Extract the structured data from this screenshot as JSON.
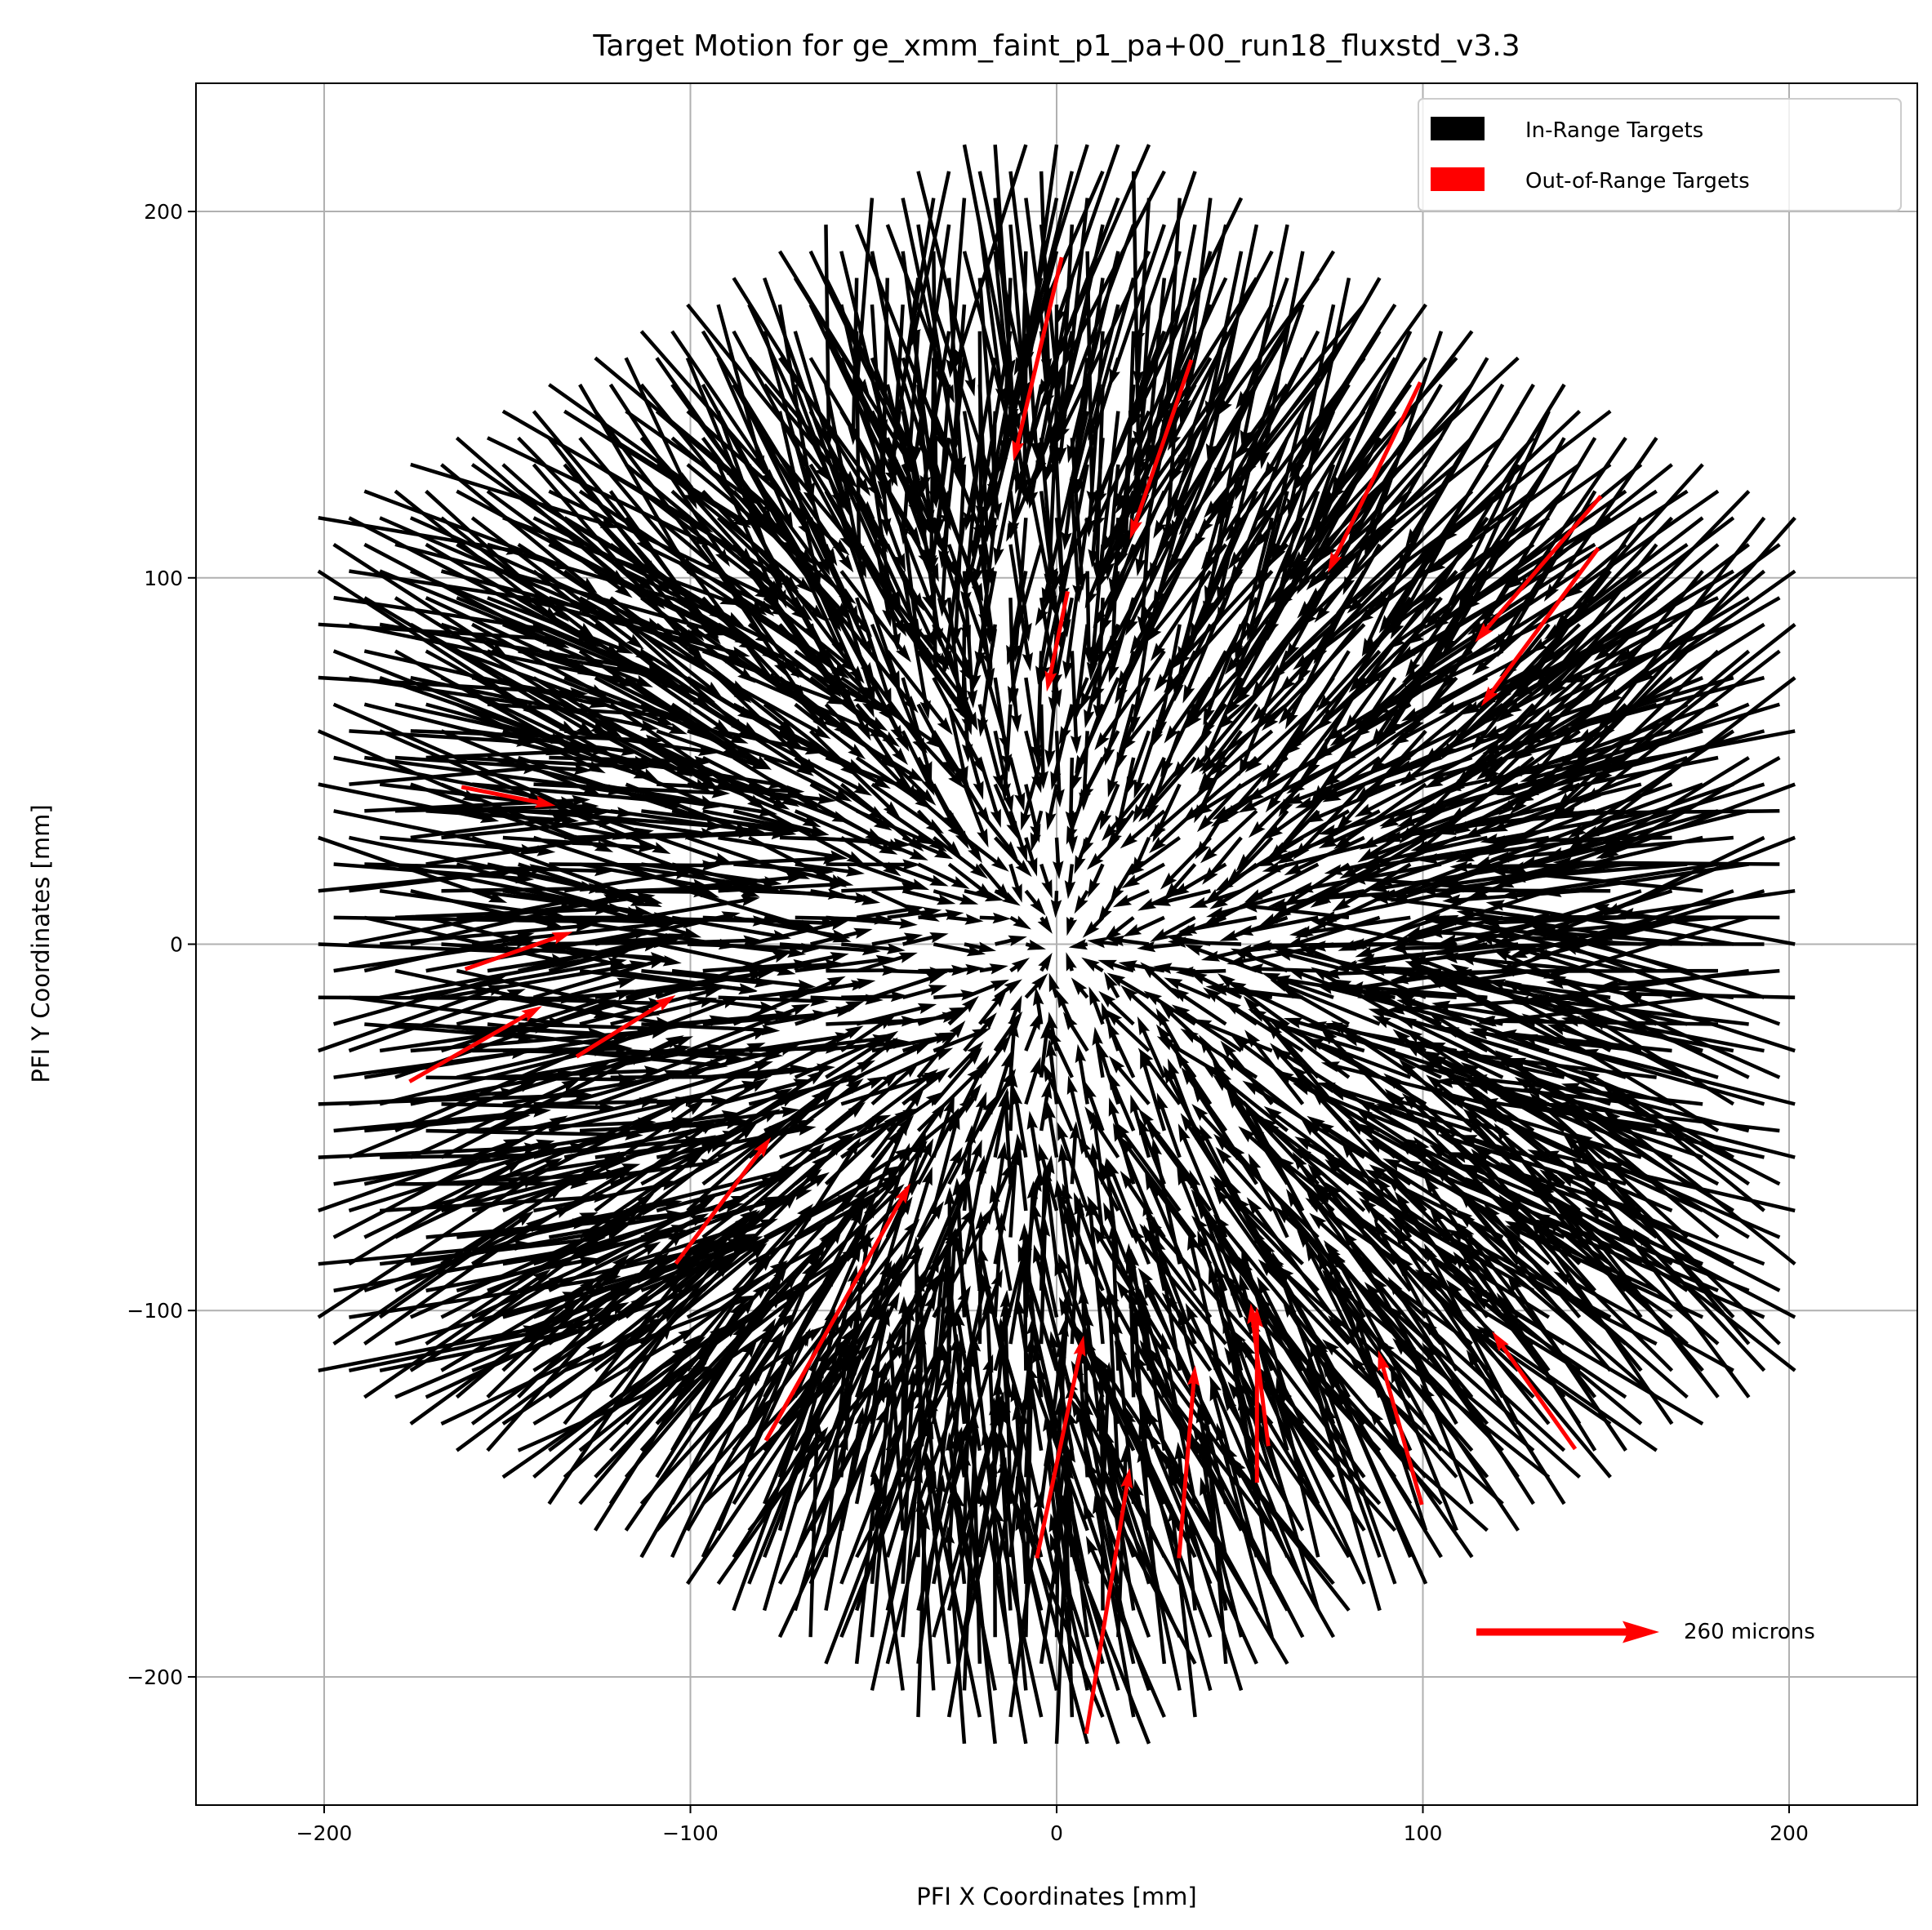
{
  "chart_data": {
    "type": "quiver",
    "title": "Target Motion for ge_xmm_faint_p1_pa+00_run18_fluxstd_v3.3",
    "xlabel": "PFI X Coordinates [mm]",
    "ylabel": "PFI Y Coordinates [mm]",
    "xlim": [
      -235,
      235
    ],
    "ylim": [
      -235,
      235
    ],
    "xticks": [
      -200,
      -100,
      0,
      100,
      200
    ],
    "yticks": [
      -200,
      -100,
      0,
      100,
      200
    ],
    "xtick_labels": [
      "−200",
      "−100",
      "0",
      "100",
      "200"
    ],
    "ytick_labels": [
      "−200",
      "−100",
      "0",
      "100",
      "200"
    ],
    "grid": true,
    "legend": {
      "placement": "upper-right",
      "entries": [
        {
          "label": "In-Range Targets",
          "color": "#000000"
        },
        {
          "label": "Out-of-Range Targets",
          "color": "#ff0000"
        }
      ]
    },
    "key": {
      "label": "260 microns",
      "color": "#ff0000"
    },
    "in_range_color": "#000000",
    "out_of_range_color": "#ff0000",
    "out_of_range_arrows": [
      {
        "tail": [
          1.4,
          187.5
        ],
        "tip": [
          -11.8,
          131.8
        ]
      },
      {
        "tail": [
          36.8,
          159.5
        ],
        "tip": [
          20.0,
          110.5
        ]
      },
      {
        "tail": [
          99.3,
          153.4
        ],
        "tip": [
          74.0,
          101.4
        ]
      },
      {
        "tail": [
          148.6,
          122.3
        ],
        "tip": [
          114.2,
          82.4
        ]
      },
      {
        "tail": [
          147.9,
          108.1
        ],
        "tip": [
          115.9,
          64.9
        ]
      },
      {
        "tail": [
          3.0,
          96.3
        ],
        "tip": [
          -2.7,
          68.9
        ]
      },
      {
        "tail": [
          -162.5,
          42.9
        ],
        "tip": [
          -136.8,
          37.8
        ]
      },
      {
        "tail": [
          -161.5,
          -6.8
        ],
        "tip": [
          -132.1,
          3.4
        ]
      },
      {
        "tail": [
          -176.7,
          -37.5
        ],
        "tip": [
          -140.5,
          -16.9
        ]
      },
      {
        "tail": [
          -131.1,
          -30.7
        ],
        "tip": [
          -104.0,
          -13.9
        ]
      },
      {
        "tail": [
          -104.0,
          -87.2
        ],
        "tip": [
          -78.0,
          -52.7
        ]
      },
      {
        "tail": [
          -79.4,
          -135.5
        ],
        "tip": [
          -39.9,
          -65.2
        ]
      },
      {
        "tail": [
          -5.4,
          -167.6
        ],
        "tip": [
          7.4,
          -106.8
        ]
      },
      {
        "tail": [
          8.1,
          -215.5
        ],
        "tip": [
          20.0,
          -142.9
        ]
      },
      {
        "tail": [
          33.4,
          -167.6
        ],
        "tip": [
          37.8,
          -114.9
        ]
      },
      {
        "tail": [
          54.7,
          -147.0
        ],
        "tip": [
          54.7,
          -99.0
        ]
      },
      {
        "tail": [
          57.8,
          -137.0
        ],
        "tip": [
          53.0,
          -98.0
        ]
      },
      {
        "tail": [
          99.7,
          -153.0
        ],
        "tip": [
          87.8,
          -110.8
        ]
      },
      {
        "tail": [
          141.6,
          -137.8
        ],
        "tip": [
          118.9,
          -105.7
        ]
      }
    ]
  }
}
